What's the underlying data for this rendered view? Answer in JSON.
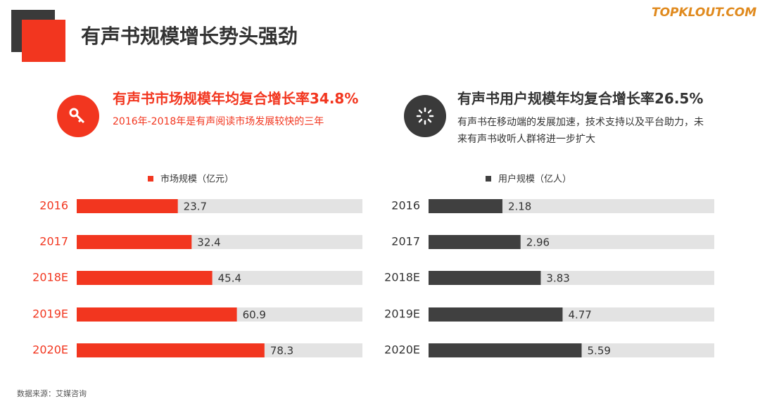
{
  "header": {
    "title": "有声书规模增长势头强劲",
    "logo": "TOPKLOUT.COM"
  },
  "chart_data": [
    {
      "type": "bar",
      "orientation": "horizontal",
      "title": "有声书市场规模年均复合增长率34.8%",
      "subtitle": "2016年-2018年是有声阅读市场发展较快的三年",
      "categories": [
        "2016",
        "2017",
        "2018E",
        "2019E",
        "2020E"
      ],
      "series": [
        {
          "name": "市场规模（亿元）",
          "color": "#f2361f",
          "values": [
            23.7,
            32.4,
            45.4,
            60.9,
            78.3
          ]
        }
      ],
      "xlim": [
        -40,
        140
      ],
      "title_color": "#f2361f"
    },
    {
      "type": "bar",
      "orientation": "horizontal",
      "title": "有声书用户规模年均复合增长率26.5%",
      "subtitle": "有声书在移动端的发展加速，技术支持以及平台助力，未来有声书收听人群将进一步扩大",
      "categories": [
        "2016",
        "2017",
        "2018E",
        "2019E",
        "2020E"
      ],
      "series": [
        {
          "name": "用户规模（亿人）",
          "color": "#404040",
          "values": [
            2.18,
            2.96,
            3.83,
            4.77,
            5.59
          ]
        }
      ],
      "xlim": [
        -1,
        11.3
      ],
      "title_color": "#333333"
    }
  ],
  "source": "数据来源：艾媒咨询"
}
